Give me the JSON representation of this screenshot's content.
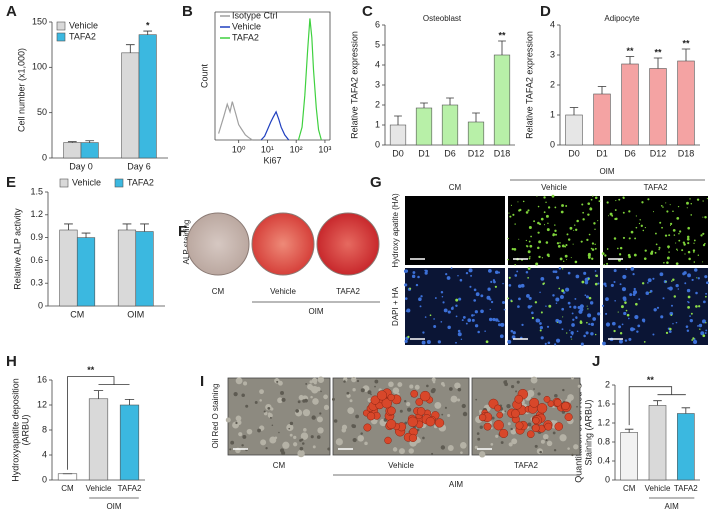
{
  "chart_data": [
    {
      "panel": "A",
      "type": "bar",
      "y_label": "Cell number (x1,000)",
      "categories": [
        "Day 0",
        "Day 6"
      ],
      "series": [
        {
          "name": "Vehicle",
          "color": "#d9d9d9",
          "values": [
            17,
            116
          ],
          "errors": [
            1,
            9
          ]
        },
        {
          "name": "TAFA2",
          "color": "#3bb8e0",
          "values": [
            17,
            136
          ],
          "errors": [
            2,
            4
          ]
        }
      ],
      "ylim": [
        0,
        150
      ],
      "yticks": [
        0,
        50,
        100,
        150
      ],
      "legend": "upper left",
      "annotations": [
        {
          "text": "*",
          "at": "Day 6",
          "series": "TAFA2"
        }
      ]
    },
    {
      "panel": "B",
      "type": "line",
      "x_label": "Ki67",
      "y_label": "Count",
      "xlog": true,
      "xlim": [
        0.15,
        1500
      ],
      "ylim": [
        0,
        100
      ],
      "xticks": [
        {
          "value": 1,
          "label": "10⁰"
        },
        {
          "value": 10,
          "label": "10¹"
        },
        {
          "value": 100,
          "label": "10²"
        },
        {
          "value": 1000,
          "label": "10³"
        }
      ],
      "series": [
        {
          "name": "Isotype Ctrl",
          "color": "#a0a0a0",
          "x": [
            0.2,
            0.3,
            0.4,
            0.5,
            0.6,
            0.8,
            1,
            1.3,
            1.7,
            2.2,
            3
          ],
          "values": [
            5,
            18,
            28,
            22,
            30,
            20,
            12,
            8,
            4,
            2,
            0
          ]
        },
        {
          "name": "Vehicle",
          "color": "#1f3fbf",
          "x": [
            6,
            8,
            10,
            13,
            16,
            20,
            25,
            30,
            40,
            55
          ],
          "values": [
            0,
            3,
            8,
            14,
            18,
            22,
            16,
            10,
            4,
            0
          ]
        },
        {
          "name": "TAFA2",
          "color": "#3fd13f",
          "x": [
            120,
            160,
            200,
            250,
            300,
            350,
            400,
            500,
            600,
            750
          ],
          "values": [
            0,
            10,
            35,
            70,
            95,
            80,
            55,
            25,
            8,
            0
          ]
        }
      ],
      "legend": "upper left"
    },
    {
      "panel": "C",
      "type": "bar",
      "subtitle": "Osteoblast",
      "y_label": "Relative TAFA2 expression",
      "categories": [
        "D0",
        "D1",
        "D6",
        "D12",
        "D18"
      ],
      "values": [
        1.0,
        1.85,
        2.0,
        1.15,
        4.5
      ],
      "errors": [
        0.45,
        0.25,
        0.35,
        0.45,
        0.7
      ],
      "colors": [
        "#e6e6e6",
        "#b8f0a8",
        "#b8f0a8",
        "#b8f0a8",
        "#b8f0a8"
      ],
      "ylim": [
        0,
        6
      ],
      "yticks": [
        0,
        1,
        2,
        3,
        4,
        5,
        6
      ],
      "annotations": [
        {
          "text": "**",
          "at": "D18"
        }
      ]
    },
    {
      "panel": "D",
      "type": "bar",
      "subtitle": "Adipocyte",
      "y_label": "Relative TAFA2 expression",
      "categories": [
        "D0",
        "D1",
        "D6",
        "D12",
        "D18"
      ],
      "values": [
        1.0,
        1.7,
        2.7,
        2.55,
        2.8
      ],
      "errors": [
        0.25,
        0.25,
        0.25,
        0.35,
        0.4
      ],
      "colors": [
        "#e6e6e6",
        "#f4a3a3",
        "#f4a3a3",
        "#f4a3a3",
        "#f4a3a3"
      ],
      "ylim": [
        0,
        4
      ],
      "yticks": [
        0,
        1,
        2,
        3,
        4
      ],
      "annotations": [
        {
          "text": "**",
          "at": "D6"
        },
        {
          "text": "**",
          "at": "D12"
        },
        {
          "text": "**",
          "at": "D18"
        }
      ]
    },
    {
      "panel": "E",
      "type": "bar",
      "y_label": "Relative ALP activity",
      "categories": [
        "CM",
        "OIM"
      ],
      "series": [
        {
          "name": "Vehicle",
          "color": "#d9d9d9",
          "values": [
            1.0,
            1.0
          ],
          "errors": [
            0.08,
            0.08
          ]
        },
        {
          "name": "TAFA2",
          "color": "#3bb8e0",
          "values": [
            0.9,
            0.98
          ],
          "errors": [
            0.06,
            0.1
          ]
        }
      ],
      "ylim": [
        0,
        1.5
      ],
      "yticks": [
        0,
        0.3,
        0.6,
        0.9,
        1.2,
        1.5
      ],
      "legend": "top"
    },
    {
      "panel": "H",
      "type": "bar",
      "y_label": [
        "Hydroxyapatite deposition",
        "(ARBU)"
      ],
      "categories": [
        "CM",
        "Vehicle",
        "TAFA2"
      ],
      "values": [
        1,
        13,
        12
      ],
      "errors": [
        0,
        1.3,
        0.9
      ],
      "colors": [
        "#ffffff",
        "#d9d9d9",
        "#3bb8e0"
      ],
      "group_label": "OIM",
      "significance": "**",
      "ylim": [
        0,
        16
      ],
      "yticks": [
        0,
        4,
        8,
        12,
        16
      ]
    },
    {
      "panel": "J",
      "type": "bar",
      "y_label": [
        "Quantitation of Oil Red O",
        "Staining (ARBU)"
      ],
      "categories": [
        "CM",
        "Vehicle",
        "TAFA2"
      ],
      "values": [
        1.0,
        1.57,
        1.4
      ],
      "errors": [
        0.07,
        0.1,
        0.12
      ],
      "colors": [
        "#f2f2f2",
        "#d9d9d9",
        "#3bb8e0"
      ],
      "group_label": "AIM",
      "significance": "**",
      "ylim": [
        0,
        2
      ],
      "yticks": [
        0,
        0.4,
        0.8,
        1.2,
        1.6,
        2
      ]
    }
  ],
  "panels": [
    {
      "panel": "F",
      "side_label": "ALP staining",
      "captions": [
        "CM",
        "Vehicle",
        "TAFA2"
      ],
      "group_label": "OIM"
    },
    {
      "panel": "G",
      "column_labels": [
        "CM",
        "Vehicle",
        "TAFA2"
      ],
      "group_label": "OIM",
      "row_labels": [
        "Hydroxy apatite (HA)",
        "DAPI + HA"
      ]
    },
    {
      "panel": "I",
      "side_label": "Oil Red O staining",
      "captions": [
        "CM",
        "Vehicle",
        "TAFA2"
      ],
      "group_label": "AIM"
    }
  ]
}
